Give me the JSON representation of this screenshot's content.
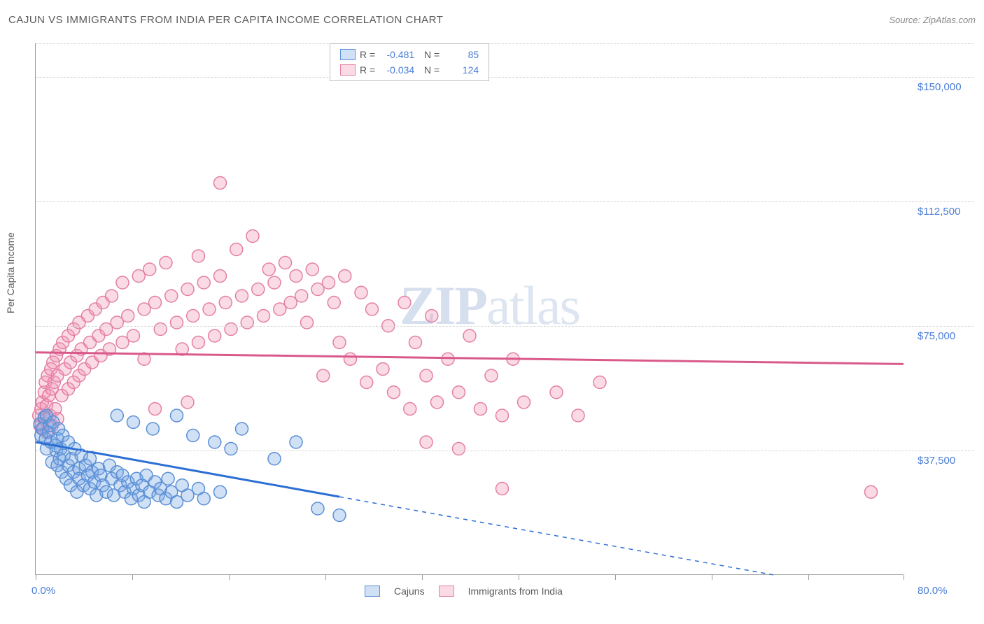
{
  "title": "CAJUN VS IMMIGRANTS FROM INDIA PER CAPITA INCOME CORRELATION CHART",
  "source": "Source: ZipAtlas.com",
  "ylabel": "Per Capita Income",
  "watermark_bold": "ZIP",
  "watermark_light": "atlas",
  "chart": {
    "type": "scatter",
    "xlim": [
      0,
      80
    ],
    "ylim": [
      0,
      160000
    ],
    "x_start_label": "0.0%",
    "x_end_label": "80.0%",
    "ytick_values": [
      37500,
      75000,
      112500,
      150000
    ],
    "ytick_labels": [
      "$37,500",
      "$75,000",
      "$112,500",
      "$150,000"
    ],
    "xtick_positions": [
      0,
      8.9,
      17.8,
      26.7,
      35.6,
      44.5,
      53.4,
      62.3,
      71.2,
      80
    ],
    "background_color": "#ffffff",
    "grid_color": "#d5d5d5",
    "axis_color": "#9c9c9c",
    "marker_radius": 9,
    "marker_stroke_width": 1.5,
    "series": [
      {
        "name": "Cajuns",
        "fill": "rgba(120,165,225,0.35)",
        "stroke": "#5a8fd6",
        "r_value": "-0.481",
        "n_value": "85",
        "trend": {
          "y_at_x0": 40000,
          "y_at_x80": -7000,
          "solid_until_x": 28
        },
        "points": [
          [
            0.4,
            45500
          ],
          [
            0.5,
            42000
          ],
          [
            0.6,
            44000
          ],
          [
            0.8,
            47500
          ],
          [
            0.9,
            41000
          ],
          [
            1.0,
            48000
          ],
          [
            1.0,
            38000
          ],
          [
            1.2,
            43000
          ],
          [
            1.3,
            45000
          ],
          [
            1.4,
            40000
          ],
          [
            1.5,
            34000
          ],
          [
            1.6,
            46000
          ],
          [
            1.8,
            39000
          ],
          [
            1.9,
            37500
          ],
          [
            2.0,
            41000
          ],
          [
            2.0,
            33000
          ],
          [
            2.1,
            44000
          ],
          [
            2.2,
            35000
          ],
          [
            2.3,
            38000
          ],
          [
            2.4,
            31000
          ],
          [
            2.5,
            42000
          ],
          [
            2.6,
            36000
          ],
          [
            2.8,
            29000
          ],
          [
            3.0,
            33000
          ],
          [
            3.0,
            40000
          ],
          [
            3.2,
            27000
          ],
          [
            3.3,
            35000
          ],
          [
            3.5,
            31000
          ],
          [
            3.6,
            38000
          ],
          [
            3.8,
            25000
          ],
          [
            4.0,
            32000
          ],
          [
            4.0,
            29000
          ],
          [
            4.2,
            36000
          ],
          [
            4.4,
            27000
          ],
          [
            4.6,
            33000
          ],
          [
            4.8,
            30000
          ],
          [
            5.0,
            26000
          ],
          [
            5.0,
            35000
          ],
          [
            5.2,
            31000
          ],
          [
            5.4,
            28000
          ],
          [
            5.6,
            24000
          ],
          [
            5.8,
            32000
          ],
          [
            6.0,
            30000
          ],
          [
            6.2,
            27000
          ],
          [
            6.5,
            25000
          ],
          [
            6.8,
            33000
          ],
          [
            7.0,
            29000
          ],
          [
            7.2,
            24000
          ],
          [
            7.5,
            31000
          ],
          [
            7.5,
            48000
          ],
          [
            7.8,
            27000
          ],
          [
            8.0,
            30000
          ],
          [
            8.2,
            25000
          ],
          [
            8.5,
            28000
          ],
          [
            8.8,
            23000
          ],
          [
            9.0,
            26000
          ],
          [
            9.0,
            46000
          ],
          [
            9.3,
            29000
          ],
          [
            9.5,
            24000
          ],
          [
            9.8,
            27000
          ],
          [
            10.0,
            22000
          ],
          [
            10.2,
            30000
          ],
          [
            10.5,
            25000
          ],
          [
            10.8,
            44000
          ],
          [
            11.0,
            28000
          ],
          [
            11.3,
            24000
          ],
          [
            11.5,
            26000
          ],
          [
            12.0,
            23000
          ],
          [
            12.2,
            29000
          ],
          [
            12.5,
            25000
          ],
          [
            13.0,
            22000
          ],
          [
            13.0,
            48000
          ],
          [
            13.5,
            27000
          ],
          [
            14.0,
            24000
          ],
          [
            14.5,
            42000
          ],
          [
            15.0,
            26000
          ],
          [
            15.5,
            23000
          ],
          [
            16.5,
            40000
          ],
          [
            17.0,
            25000
          ],
          [
            18.0,
            38000
          ],
          [
            19.0,
            44000
          ],
          [
            22.0,
            35000
          ],
          [
            24.0,
            40000
          ],
          [
            26.0,
            20000
          ],
          [
            28.0,
            18000
          ]
        ]
      },
      {
        "name": "Immigrants from India",
        "fill": "rgba(240,150,180,0.35)",
        "stroke": "#e47fa4",
        "r_value": "-0.034",
        "n_value": "124",
        "trend": {
          "y_at_x0": 67000,
          "y_at_x80": 63500,
          "solid_until_x": 80
        },
        "points": [
          [
            0.3,
            48000
          ],
          [
            0.4,
            45000
          ],
          [
            0.5,
            50000
          ],
          [
            0.6,
            52000
          ],
          [
            0.7,
            44000
          ],
          [
            0.8,
            55000
          ],
          [
            0.8,
            47000
          ],
          [
            0.9,
            58000
          ],
          [
            1.0,
            51000
          ],
          [
            1.0,
            43000
          ],
          [
            1.1,
            60000
          ],
          [
            1.2,
            54000
          ],
          [
            1.3,
            48000
          ],
          [
            1.4,
            62000
          ],
          [
            1.5,
            56000
          ],
          [
            1.5,
            45000
          ],
          [
            1.6,
            64000
          ],
          [
            1.7,
            58000
          ],
          [
            1.8,
            50000
          ],
          [
            1.9,
            66000
          ],
          [
            2.0,
            60000
          ],
          [
            2.0,
            47000
          ],
          [
            2.2,
            68000
          ],
          [
            2.4,
            54000
          ],
          [
            2.5,
            70000
          ],
          [
            2.7,
            62000
          ],
          [
            3.0,
            56000
          ],
          [
            3.0,
            72000
          ],
          [
            3.2,
            64000
          ],
          [
            3.5,
            58000
          ],
          [
            3.5,
            74000
          ],
          [
            3.8,
            66000
          ],
          [
            4.0,
            60000
          ],
          [
            4.0,
            76000
          ],
          [
            4.2,
            68000
          ],
          [
            4.5,
            62000
          ],
          [
            4.8,
            78000
          ],
          [
            5.0,
            70000
          ],
          [
            5.2,
            64000
          ],
          [
            5.5,
            80000
          ],
          [
            5.8,
            72000
          ],
          [
            6.0,
            66000
          ],
          [
            6.2,
            82000
          ],
          [
            6.5,
            74000
          ],
          [
            6.8,
            68000
          ],
          [
            7.0,
            84000
          ],
          [
            7.5,
            76000
          ],
          [
            8.0,
            70000
          ],
          [
            8.0,
            88000
          ],
          [
            8.5,
            78000
          ],
          [
            9.0,
            72000
          ],
          [
            9.5,
            90000
          ],
          [
            10.0,
            80000
          ],
          [
            10.0,
            65000
          ],
          [
            10.5,
            92000
          ],
          [
            11.0,
            82000
          ],
          [
            11.0,
            50000
          ],
          [
            11.5,
            74000
          ],
          [
            12.0,
            94000
          ],
          [
            12.5,
            84000
          ],
          [
            13.0,
            76000
          ],
          [
            13.5,
            68000
          ],
          [
            14.0,
            86000
          ],
          [
            14.0,
            52000
          ],
          [
            14.5,
            78000
          ],
          [
            15.0,
            96000
          ],
          [
            15.0,
            70000
          ],
          [
            15.5,
            88000
          ],
          [
            16.0,
            80000
          ],
          [
            16.5,
            72000
          ],
          [
            17.0,
            90000
          ],
          [
            17.0,
            118000
          ],
          [
            17.5,
            82000
          ],
          [
            18.0,
            74000
          ],
          [
            18.5,
            98000
          ],
          [
            19.0,
            84000
          ],
          [
            19.5,
            76000
          ],
          [
            20.0,
            102000
          ],
          [
            20.5,
            86000
          ],
          [
            21.0,
            78000
          ],
          [
            21.5,
            92000
          ],
          [
            22.0,
            88000
          ],
          [
            22.5,
            80000
          ],
          [
            23.0,
            94000
          ],
          [
            23.5,
            82000
          ],
          [
            24.0,
            90000
          ],
          [
            24.5,
            84000
          ],
          [
            25.0,
            76000
          ],
          [
            25.5,
            92000
          ],
          [
            26.0,
            86000
          ],
          [
            26.5,
            60000
          ],
          [
            27.0,
            88000
          ],
          [
            27.5,
            82000
          ],
          [
            28.0,
            70000
          ],
          [
            28.5,
            90000
          ],
          [
            29.0,
            65000
          ],
          [
            30.0,
            85000
          ],
          [
            30.5,
            58000
          ],
          [
            31.0,
            80000
          ],
          [
            32.0,
            62000
          ],
          [
            32.5,
            75000
          ],
          [
            33.0,
            55000
          ],
          [
            34.0,
            82000
          ],
          [
            34.5,
            50000
          ],
          [
            35.0,
            70000
          ],
          [
            36.0,
            60000
          ],
          [
            36.5,
            78000
          ],
          [
            37.0,
            52000
          ],
          [
            38.0,
            65000
          ],
          [
            39.0,
            55000
          ],
          [
            40.0,
            72000
          ],
          [
            41.0,
            50000
          ],
          [
            42.0,
            60000
          ],
          [
            43.0,
            48000
          ],
          [
            44.0,
            65000
          ],
          [
            45.0,
            52000
          ],
          [
            36.0,
            40000
          ],
          [
            39.0,
            38000
          ],
          [
            48.0,
            55000
          ],
          [
            50.0,
            48000
          ],
          [
            43.0,
            26000
          ],
          [
            52.0,
            58000
          ],
          [
            77.0,
            25000
          ]
        ]
      }
    ]
  },
  "legend_bottom": [
    {
      "label": "Cajuns",
      "fill": "rgba(120,165,225,0.35)",
      "stroke": "#5a8fd6"
    },
    {
      "label": "Immigrants from India",
      "fill": "rgba(240,150,180,0.35)",
      "stroke": "#e47fa4"
    }
  ],
  "colors": {
    "text_grey": "#5a5a5a",
    "value_blue": "#4a7dd6",
    "trend_blue": "#2c6fd4",
    "trend_pink": "#d95a8a"
  }
}
